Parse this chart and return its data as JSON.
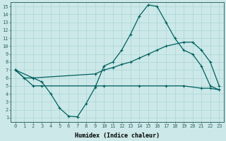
{
  "xlabel": "Humidex (Indice chaleur)",
  "bg_color": "#cce8e8",
  "grid_color": "#b0d8d8",
  "line_color": "#006060",
  "xlim": [
    -0.5,
    23.5
  ],
  "ylim": [
    0.5,
    15.5
  ],
  "xticks": [
    0,
    1,
    2,
    3,
    4,
    5,
    6,
    7,
    8,
    9,
    10,
    11,
    12,
    13,
    14,
    15,
    16,
    17,
    18,
    19,
    20,
    21,
    22,
    23
  ],
  "yticks": [
    1,
    2,
    3,
    4,
    5,
    6,
    7,
    8,
    9,
    10,
    11,
    12,
    13,
    14,
    15
  ],
  "line1_x": [
    0,
    1,
    2,
    3,
    4,
    5,
    6,
    7,
    8,
    9,
    10,
    11,
    12,
    13,
    14,
    15,
    16,
    17,
    18,
    19,
    20,
    21,
    22,
    23
  ],
  "line1_y": [
    7.0,
    6.0,
    6.0,
    5.5,
    4.0,
    2.2,
    1.2,
    1.1,
    2.8,
    4.8,
    7.5,
    8.0,
    9.5,
    11.5,
    13.8,
    15.2,
    15.0,
    13.0,
    11.0,
    9.5,
    9.0,
    7.5,
    5.0,
    4.5
  ],
  "line2_x": [
    0,
    2,
    9,
    10,
    11,
    12,
    13,
    14,
    15,
    16,
    17,
    19,
    20,
    21,
    22,
    23
  ],
  "line2_y": [
    7.0,
    6.0,
    6.5,
    7.0,
    7.3,
    7.7,
    8.0,
    8.5,
    9.0,
    9.5,
    10.0,
    10.5,
    10.5,
    9.5,
    8.0,
    5.0
  ],
  "line3_x": [
    0,
    2,
    3,
    9,
    10,
    14,
    17,
    19,
    21,
    22,
    23
  ],
  "line3_y": [
    7.0,
    5.0,
    5.0,
    5.0,
    5.0,
    5.0,
    5.0,
    5.0,
    4.7,
    4.7,
    4.5
  ]
}
